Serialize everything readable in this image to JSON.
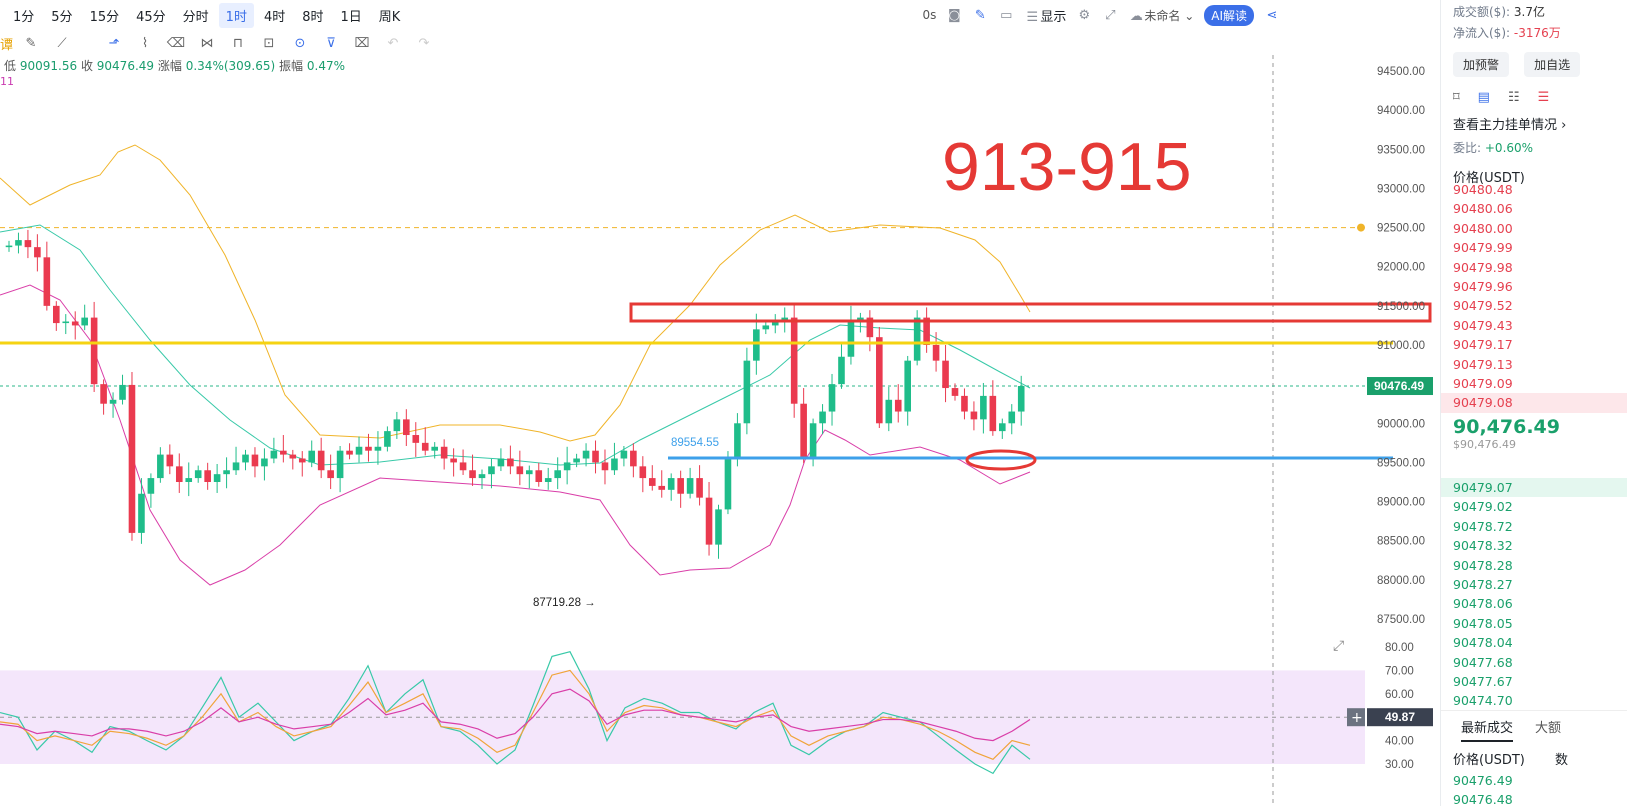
{
  "toolbar": {
    "timeframes": [
      "1分",
      "5分",
      "15分",
      "45分",
      "分时",
      "1时",
      "4时",
      "8时",
      "1日",
      "周K"
    ],
    "active_timeframe": "1时",
    "countdown": "0s",
    "display_label": "显示",
    "unnamed_label": "未命名",
    "ai_label": "AI解读"
  },
  "ohlc": {
    "low_label": "低",
    "low_value": "90091.56",
    "close_label": "收",
    "close_value": "90476.49",
    "change_label": "涨幅",
    "change_value": "0.34%(309.65)",
    "amplitude_label": "振幅",
    "amplitude_value": "0.47%",
    "indicator_fragment": "11"
  },
  "annotations": {
    "big_title": "913-915",
    "low_marker": "87719.28",
    "mid_label": "89554.55"
  },
  "price_axis": {
    "ticks": [
      "94500.00",
      "94000.00",
      "93500.00",
      "93000.00",
      "92500.00",
      "92000.00",
      "91500.00",
      "91000.00",
      "90500.00",
      "90000.00",
      "89500.00",
      "89000.00",
      "88500.00",
      "88000.00",
      "87500.00"
    ],
    "current_price": "90476.49"
  },
  "rsi_axis": {
    "ticks": [
      "80.00",
      "70.00",
      "60.00",
      "50.00",
      "40.00",
      "30.00"
    ],
    "current": "49.87"
  },
  "sidebar": {
    "turnover_label": "成交额($):",
    "turnover_value": "3.7亿",
    "netflow_label": "净流入($):",
    "netflow_value": "-3176万",
    "btn_alert": "加预警",
    "btn_watch": "加自选",
    "main_orders": "查看主力挂单情况",
    "ratio_label": "委比:",
    "ratio_value": "+0.60%",
    "price_header": "价格(USDT)",
    "asks": [
      "90480.48",
      "90480.06",
      "90480.00",
      "90479.99",
      "90479.98",
      "90479.96",
      "90479.52",
      "90479.43",
      "90479.17",
      "90479.13",
      "90479.09",
      "90479.08"
    ],
    "last_price": "90,476.49",
    "last_price_usd": "$90,476.49",
    "bids": [
      "90479.07",
      "90479.02",
      "90478.72",
      "90478.32",
      "90478.28",
      "90478.27",
      "90478.06",
      "90478.05",
      "90478.04",
      "90477.68",
      "90477.67",
      "90474.70"
    ],
    "trades_tab": "最新成交",
    "big_tab": "大额",
    "trades_header": "价格(USDT)",
    "trades_qty_header": "数",
    "trades": [
      "90476.49",
      "90476.48"
    ]
  },
  "colors": {
    "up": "#1fbd8a",
    "down": "#ea3a4f",
    "boll_upper": "#f0b429",
    "boll_mid": "#38c9a8",
    "boll_lower": "#d93ea8",
    "yellow_line": "#f5d312",
    "blue_line": "#3da0ea",
    "annot_red": "#e53935"
  }
}
